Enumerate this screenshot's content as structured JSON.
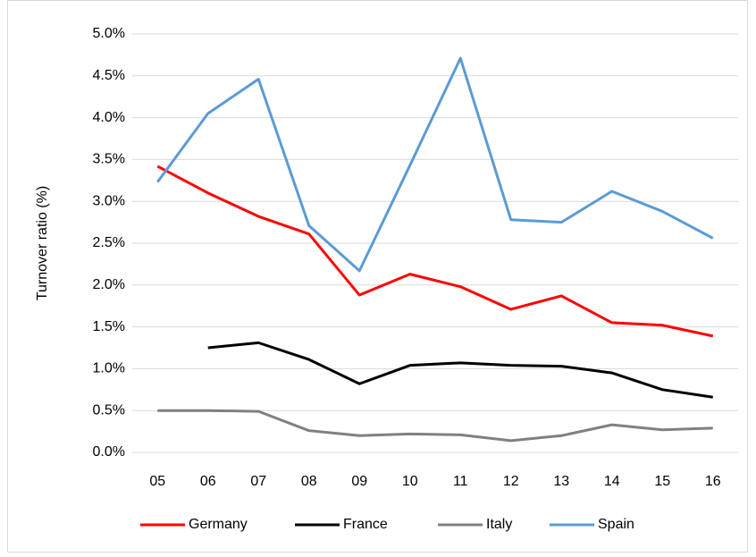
{
  "chart_data": {
    "type": "line",
    "y_label": "Turnover ratio (%)",
    "categories": [
      "05",
      "06",
      "07",
      "08",
      "09",
      "10",
      "11",
      "12",
      "13",
      "14",
      "15",
      "16"
    ],
    "series": [
      {
        "name": "Germany",
        "color": "#ff0000",
        "values": [
          3.42,
          3.1,
          2.82,
          2.61,
          1.88,
          2.13,
          1.98,
          1.71,
          1.87,
          1.55,
          1.52,
          1.39
        ]
      },
      {
        "name": "France",
        "color": "#000000",
        "values": [
          null,
          1.25,
          1.31,
          1.11,
          0.82,
          1.04,
          1.07,
          1.04,
          1.03,
          0.95,
          0.75,
          0.66
        ]
      },
      {
        "name": "Italy",
        "color": "#808080",
        "values": [
          0.5,
          0.5,
          0.49,
          0.26,
          0.2,
          0.22,
          0.21,
          0.14,
          0.2,
          0.33,
          0.27,
          0.29
        ]
      },
      {
        "name": "Spain",
        "color": "#5b9bd5",
        "values": [
          3.23,
          4.05,
          4.46,
          2.71,
          2.17,
          3.43,
          4.71,
          2.78,
          2.75,
          3.12,
          2.88,
          2.56
        ]
      }
    ],
    "ylim": [
      0,
      5
    ],
    "yticks": [
      {
        "value": 0,
        "label": "0.0%"
      },
      {
        "value": 0.5,
        "label": "0.5%"
      },
      {
        "value": 1,
        "label": "1.0%"
      },
      {
        "value": 1.5,
        "label": "1.5%"
      },
      {
        "value": 2,
        "label": "2.0%"
      },
      {
        "value": 2.5,
        "label": "2.5%"
      },
      {
        "value": 3,
        "label": "3.0%"
      },
      {
        "value": 3.5,
        "label": "3.5%"
      },
      {
        "value": 4,
        "label": "4.0%"
      },
      {
        "value": 4.5,
        "label": "4.5%"
      },
      {
        "value": 5,
        "label": "5.0%"
      }
    ],
    "grid": true,
    "legend": "bottom"
  }
}
